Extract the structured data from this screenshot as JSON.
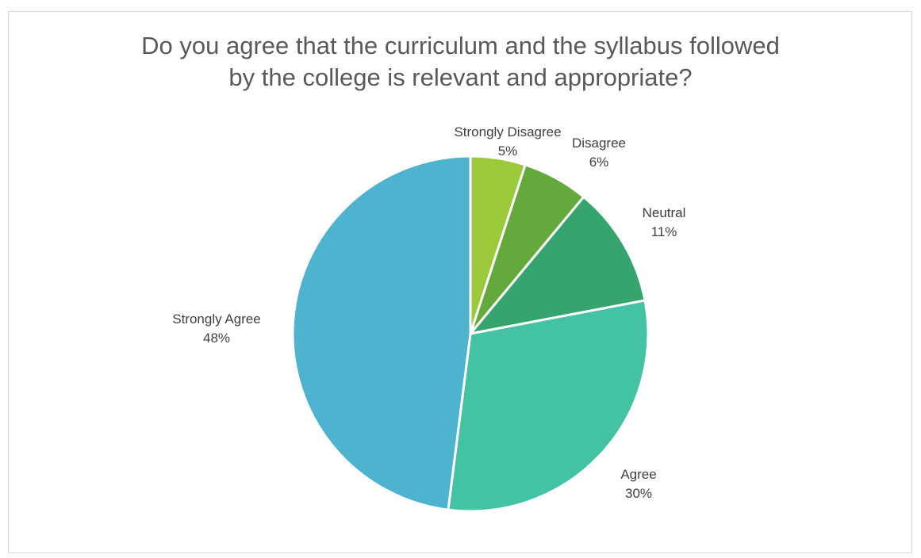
{
  "chart_data": {
    "type": "pie",
    "title": "Do you agree that the curriculum and the syllabus followed by the college is relevant and appropriate?",
    "title_lines": [
      "Do you agree that the curriculum and the syllabus followed",
      "by the college is relevant and appropriate?"
    ],
    "categories": [
      "Strongly Disagree",
      "Disagree",
      "Neutral",
      "Agree",
      "Strongly Agree"
    ],
    "values": [
      5,
      6,
      11,
      30,
      48
    ],
    "value_labels": [
      "5%",
      "6%",
      "11%",
      "30%",
      "48%"
    ],
    "colors": [
      "#9bc93a",
      "#63a93c",
      "#36a56d",
      "#44c2a4",
      "#4db3cf"
    ],
    "legend": "none"
  }
}
